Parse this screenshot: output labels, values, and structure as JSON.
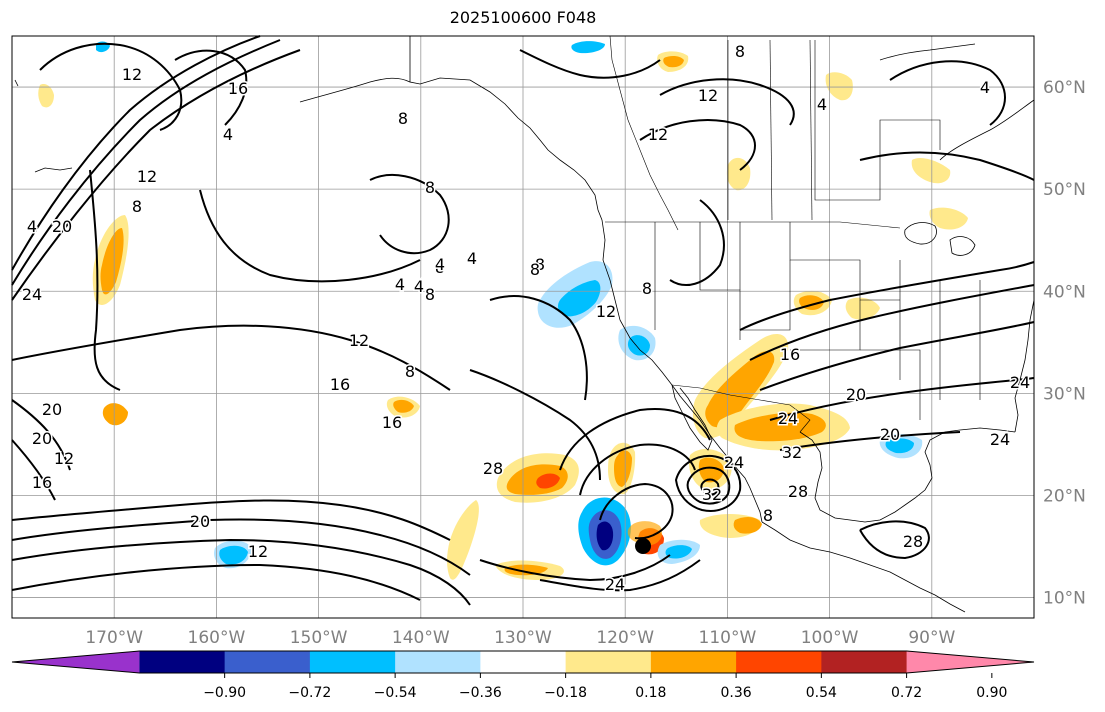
{
  "title": "2025100600 F048",
  "map": {
    "lon_range": [
      -180,
      -80
    ],
    "lat_range": [
      8,
      65
    ],
    "grid_lons": [
      -170,
      -160,
      -150,
      -140,
      -130,
      -120,
      -110,
      -100,
      -90
    ],
    "grid_lats": [
      10,
      20,
      30,
      40,
      50,
      60
    ],
    "lon_labels": [
      "170°W",
      "160°W",
      "150°W",
      "140°W",
      "130°W",
      "120°W",
      "110°W",
      "100°W",
      "90°W"
    ],
    "lat_labels": [
      "10°N",
      "20°N",
      "30°N",
      "40°N",
      "50°N",
      "60°N"
    ],
    "grid": true,
    "contour_labels": [
      "12",
      "16",
      "4",
      "8",
      "12",
      "12",
      "8",
      "4",
      "4",
      "20",
      "24",
      "8",
      "12",
      "4",
      "8",
      "12",
      "16",
      "8",
      "4",
      "4",
      "8",
      "8",
      "12",
      "8",
      "16",
      "20",
      "12",
      "16",
      "20",
      "12",
      "20",
      "16",
      "24",
      "28",
      "8",
      "24",
      "28",
      "32",
      "24",
      "20",
      "20",
      "24",
      "24",
      "28",
      "32",
      "8",
      "4",
      "4",
      "8"
    ],
    "storm_marker": "black-dot"
  },
  "colorbar": {
    "ticks": [
      "−0.90",
      "−0.72",
      "−0.54",
      "−0.36",
      "−0.18",
      "0.18",
      "0.36",
      "0.54",
      "0.72",
      "0.90"
    ],
    "colors": [
      "#9932cc",
      "#000080",
      "#3a5fcd",
      "#00bfff",
      "#b0e2ff",
      "#ffffff",
      "#ffe98c",
      "#ffa500",
      "#ff4500",
      "#b22222",
      "#ff88aa"
    ],
    "extend": "both"
  }
}
